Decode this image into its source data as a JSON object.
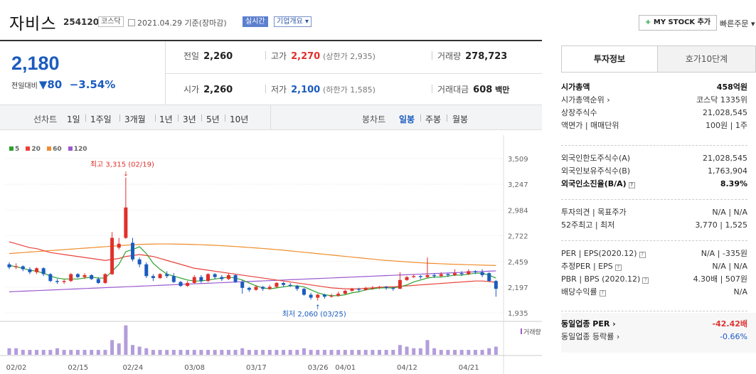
{
  "header": {
    "name": "자비스",
    "code": "254120",
    "market": "코스닥",
    "date": "2021.04.29 기준(장마감)",
    "realtime": "실시간",
    "overview": "기업개요 ▾",
    "mystock": "MY STOCK 추가",
    "mystock_plus": "+",
    "quick_order": "빠른주문 ▾"
  },
  "price": {
    "current": "2,180",
    "change_label": "전일대비",
    "change_arrow": "▼",
    "change_value": "80",
    "change_rate": "−3.54%"
  },
  "quotes": {
    "prev_label": "전일",
    "prev": "2,260",
    "high_label": "고가",
    "high": "2,270",
    "upper_limit": "(상한가 2,935)",
    "volume_label": "거래량",
    "volume": "278,723",
    "open_label": "시가",
    "open": "2,260",
    "low_label": "저가",
    "low": "2,100",
    "lower_limit": "(하한가 1,585)",
    "amount_label": "거래대금",
    "amount": "608",
    "amount_unit": "백만"
  },
  "periods": {
    "line_head": "선차트",
    "line_items": [
      "1일",
      "1주일",
      "3개월",
      "1년",
      "3년",
      "5년",
      "10년"
    ],
    "candle_head": "봉차트",
    "candle_items": [
      "일봉",
      "주봉",
      "월봉"
    ],
    "candle_active": "일봉"
  },
  "chart_data": {
    "type": "candlestick",
    "legend": [
      {
        "name": "5",
        "color": "#2ca02c"
      },
      {
        "name": "20",
        "color": "#e8413a"
      },
      {
        "name": "60",
        "color": "#f08c2c"
      },
      {
        "name": "120",
        "color": "#9b59d0"
      }
    ],
    "y_ticks": [
      "3,509",
      "3,247",
      "2,984",
      "2,722",
      "2,459",
      "2,197",
      "1,935"
    ],
    "ylim": [
      1935,
      3509
    ],
    "x_ticks": [
      "02/02",
      "02/15",
      "02/24",
      "03/08",
      "03/17",
      "03/26",
      "04/01",
      "04/12",
      "04/21"
    ],
    "high_note": "최고 3,315 (02/19)",
    "low_note": "최저 2,060 (03/25)",
    "volume_label": "거래량",
    "candles": [
      {
        "o": 2430,
        "c": 2400,
        "h": 2450,
        "l": 2380
      },
      {
        "o": 2400,
        "c": 2410,
        "h": 2440,
        "l": 2380
      },
      {
        "o": 2410,
        "c": 2380,
        "h": 2420,
        "l": 2360
      },
      {
        "o": 2380,
        "c": 2350,
        "h": 2400,
        "l": 2330
      },
      {
        "o": 2350,
        "c": 2390,
        "h": 2400,
        "l": 2330
      },
      {
        "o": 2390,
        "c": 2330,
        "h": 2400,
        "l": 2310
      },
      {
        "o": 2330,
        "c": 2260,
        "h": 2340,
        "l": 2250
      },
      {
        "o": 2260,
        "c": 2250,
        "h": 2280,
        "l": 2230
      },
      {
        "o": 2250,
        "c": 2260,
        "h": 2280,
        "l": 2230
      },
      {
        "o": 2260,
        "c": 2330,
        "h": 2340,
        "l": 2250
      },
      {
        "o": 2330,
        "c": 2300,
        "h": 2340,
        "l": 2290
      },
      {
        "o": 2300,
        "c": 2320,
        "h": 2340,
        "l": 2280
      },
      {
        "o": 2320,
        "c": 2280,
        "h": 2330,
        "l": 2270
      },
      {
        "o": 2280,
        "c": 2240,
        "h": 2300,
        "l": 2230
      },
      {
        "o": 2240,
        "c": 2330,
        "h": 2340,
        "l": 2230
      },
      {
        "o": 2330,
        "c": 2700,
        "h": 2760,
        "l": 2320
      },
      {
        "o": 2600,
        "c": 2640,
        "h": 2700,
        "l": 2580
      },
      {
        "o": 2700,
        "c": 3010,
        "h": 3315,
        "l": 2690
      },
      {
        "o": 2650,
        "c": 2480,
        "h": 2700,
        "l": 2460
      },
      {
        "o": 2480,
        "c": 2430,
        "h": 2500,
        "l": 2400
      },
      {
        "o": 2430,
        "c": 2310,
        "h": 2450,
        "l": 2290
      },
      {
        "o": 2310,
        "c": 2290,
        "h": 2330,
        "l": 2260
      },
      {
        "o": 2290,
        "c": 2330,
        "h": 2340,
        "l": 2280
      },
      {
        "o": 2330,
        "c": 2310,
        "h": 2360,
        "l": 2290
      },
      {
        "o": 2310,
        "c": 2250,
        "h": 2340,
        "l": 2240
      },
      {
        "o": 2250,
        "c": 2210,
        "h": 2260,
        "l": 2200
      },
      {
        "o": 2210,
        "c": 2240,
        "h": 2260,
        "l": 2200
      },
      {
        "o": 2240,
        "c": 2300,
        "h": 2320,
        "l": 2230
      },
      {
        "o": 2300,
        "c": 2260,
        "h": 2320,
        "l": 2240
      },
      {
        "o": 2260,
        "c": 2330,
        "h": 2340,
        "l": 2250
      },
      {
        "o": 2330,
        "c": 2300,
        "h": 2340,
        "l": 2280
      },
      {
        "o": 2300,
        "c": 2280,
        "h": 2320,
        "l": 2260
      },
      {
        "o": 2280,
        "c": 2320,
        "h": 2340,
        "l": 2270
      },
      {
        "o": 2320,
        "c": 2250,
        "h": 2330,
        "l": 2240
      },
      {
        "o": 2250,
        "c": 2190,
        "h": 2270,
        "l": 2130
      },
      {
        "o": 2190,
        "c": 2170,
        "h": 2200,
        "l": 2150
      },
      {
        "o": 2170,
        "c": 2200,
        "h": 2220,
        "l": 2160
      },
      {
        "o": 2200,
        "c": 2180,
        "h": 2210,
        "l": 2160
      },
      {
        "o": 2180,
        "c": 2200,
        "h": 2220,
        "l": 2170
      },
      {
        "o": 2200,
        "c": 2240,
        "h": 2250,
        "l": 2190
      },
      {
        "o": 2240,
        "c": 2220,
        "h": 2250,
        "l": 2200
      },
      {
        "o": 2220,
        "c": 2210,
        "h": 2240,
        "l": 2200
      },
      {
        "o": 2210,
        "c": 2180,
        "h": 2220,
        "l": 2160
      },
      {
        "o": 2180,
        "c": 2120,
        "h": 2190,
        "l": 2110
      },
      {
        "o": 2120,
        "c": 2090,
        "h": 2140,
        "l": 2070
      },
      {
        "o": 2090,
        "c": 2120,
        "h": 2130,
        "l": 2060
      },
      {
        "o": 2120,
        "c": 2100,
        "h": 2130,
        "l": 2080
      },
      {
        "o": 2100,
        "c": 2110,
        "h": 2130,
        "l": 2090
      },
      {
        "o": 2110,
        "c": 2130,
        "h": 2150,
        "l": 2100
      },
      {
        "o": 2130,
        "c": 2160,
        "h": 2170,
        "l": 2120
      },
      {
        "o": 2160,
        "c": 2180,
        "h": 2190,
        "l": 2150
      },
      {
        "o": 2180,
        "c": 2170,
        "h": 2190,
        "l": 2150
      },
      {
        "o": 2170,
        "c": 2190,
        "h": 2200,
        "l": 2160
      },
      {
        "o": 2190,
        "c": 2190,
        "h": 2210,
        "l": 2170
      },
      {
        "o": 2190,
        "c": 2200,
        "h": 2210,
        "l": 2180
      },
      {
        "o": 2200,
        "c": 2190,
        "h": 2210,
        "l": 2170
      },
      {
        "o": 2190,
        "c": 2180,
        "h": 2200,
        "l": 2160
      },
      {
        "o": 2180,
        "c": 2270,
        "h": 2350,
        "l": 2180
      },
      {
        "o": 2270,
        "c": 2300,
        "h": 2310,
        "l": 2260
      },
      {
        "o": 2300,
        "c": 2310,
        "h": 2330,
        "l": 2290
      },
      {
        "o": 2310,
        "c": 2300,
        "h": 2320,
        "l": 2280
      },
      {
        "o": 2300,
        "c": 2320,
        "h": 2500,
        "l": 2290
      },
      {
        "o": 2320,
        "c": 2310,
        "h": 2340,
        "l": 2290
      },
      {
        "o": 2310,
        "c": 2330,
        "h": 2350,
        "l": 2300
      },
      {
        "o": 2330,
        "c": 2320,
        "h": 2340,
        "l": 2300
      },
      {
        "o": 2320,
        "c": 2340,
        "h": 2380,
        "l": 2310
      },
      {
        "o": 2340,
        "c": 2330,
        "h": 2360,
        "l": 2310
      },
      {
        "o": 2330,
        "c": 2360,
        "h": 2380,
        "l": 2320
      },
      {
        "o": 2360,
        "c": 2350,
        "h": 2370,
        "l": 2330
      },
      {
        "o": 2350,
        "c": 2320,
        "h": 2380,
        "l": 2300
      },
      {
        "o": 2340,
        "c": 2260,
        "h": 2350,
        "l": 2250
      },
      {
        "o": 2260,
        "c": 2180,
        "h": 2270,
        "l": 2100
      }
    ],
    "ma5": [
      2420,
      2405,
      2390,
      2370,
      2360,
      2340,
      2310,
      2290,
      2280,
      2280,
      2280,
      2290,
      2300,
      2290,
      2290,
      2360,
      2430,
      2560,
      2580,
      2610,
      2540,
      2440,
      2380,
      2330,
      2310,
      2290,
      2270,
      2260,
      2260,
      2270,
      2280,
      2290,
      2300,
      2290,
      2270,
      2240,
      2210,
      2190,
      2180,
      2190,
      2200,
      2210,
      2210,
      2200,
      2170,
      2140,
      2120,
      2110,
      2110,
      2120,
      2140,
      2150,
      2170,
      2180,
      2190,
      2190,
      2190,
      2200,
      2220,
      2250,
      2270,
      2290,
      2300,
      2300,
      2310,
      2320,
      2320,
      2330,
      2340,
      2340,
      2320,
      2290
    ],
    "ma20": [
      2660,
      2640,
      2620,
      2600,
      2590,
      2570,
      2550,
      2540,
      2530,
      2520,
      2510,
      2500,
      2490,
      2480,
      2470,
      2480,
      2490,
      2510,
      2520,
      2530,
      2520,
      2510,
      2490,
      2470,
      2450,
      2430,
      2410,
      2390,
      2380,
      2370,
      2360,
      2350,
      2340,
      2330,
      2320,
      2310,
      2300,
      2290,
      2280,
      2270,
      2260,
      2250,
      2240,
      2230,
      2220,
      2210,
      2200,
      2190,
      2185,
      2180,
      2180,
      2180,
      2185,
      2190,
      2195,
      2200,
      2200,
      2205,
      2210,
      2215,
      2220,
      2225,
      2230,
      2235,
      2240,
      2245,
      2250,
      2255,
      2260,
      2260,
      2255,
      2245
    ],
    "ma60": [
      2540,
      2545,
      2550,
      2555,
      2560,
      2565,
      2570,
      2575,
      2580,
      2585,
      2590,
      2595,
      2600,
      2605,
      2610,
      2615,
      2620,
      2625,
      2630,
      2633,
      2635,
      2637,
      2638,
      2638,
      2637,
      2636,
      2634,
      2632,
      2630,
      2627,
      2624,
      2620,
      2616,
      2612,
      2607,
      2602,
      2597,
      2592,
      2586,
      2580,
      2574,
      2567,
      2560,
      2553,
      2546,
      2539,
      2532,
      2525,
      2518,
      2511,
      2504,
      2497,
      2490,
      2483,
      2476,
      2470,
      2465,
      2460,
      2455,
      2450,
      2446,
      2442,
      2439,
      2436,
      2433,
      2430,
      2428,
      2426,
      2424,
      2422,
      2420,
      2418
    ],
    "ma120": [
      2150,
      2153,
      2156,
      2159,
      2162,
      2165,
      2168,
      2171,
      2174,
      2177,
      2180,
      2183,
      2186,
      2189,
      2192,
      2195,
      2198,
      2201,
      2204,
      2207,
      2210,
      2213,
      2216,
      2219,
      2222,
      2225,
      2228,
      2231,
      2234,
      2237,
      2240,
      2243,
      2246,
      2249,
      2252,
      2255,
      2258,
      2261,
      2264,
      2267,
      2270,
      2273,
      2276,
      2279,
      2282,
      2285,
      2288,
      2291,
      2294,
      2297,
      2300,
      2303,
      2306,
      2309,
      2312,
      2315,
      2318,
      2321,
      2324,
      2327,
      2330,
      2333,
      2336,
      2339,
      2342,
      2345,
      2348,
      2351,
      2354,
      2357,
      2360,
      2363
    ],
    "volumes": [
      4,
      4,
      3,
      3,
      3,
      3,
      3,
      4,
      3,
      3,
      3,
      3,
      3,
      3,
      3,
      9,
      7,
      18,
      6,
      5,
      4,
      3,
      3,
      3,
      3,
      3,
      3,
      3,
      3,
      3,
      3,
      3,
      3,
      3,
      4,
      3,
      3,
      3,
      3,
      3,
      3,
      3,
      3,
      4,
      3,
      3,
      3,
      3,
      3,
      3,
      3,
      3,
      3,
      3,
      3,
      3,
      3,
      6,
      5,
      4,
      4,
      9,
      4,
      3,
      3,
      3,
      3,
      3,
      3,
      3,
      4,
      5
    ]
  },
  "panel": {
    "tab_on": "투자정보",
    "tab_off": "호가10단계",
    "rows1": [
      {
        "l": "시가총액",
        "r": "458억원",
        "bold": true
      },
      {
        "l": "시가총액순위 ›",
        "r": "코스닥 1335위"
      },
      {
        "l": "상장주식수",
        "r": "21,028,545"
      },
      {
        "l": "액면가 | 매매단위",
        "r": "100원 | 1주"
      }
    ],
    "rows2": [
      {
        "l": "외국인한도주식수(A)",
        "r": "21,028,545"
      },
      {
        "l": "외국인보유주식수(B)",
        "r": "1,763,904"
      },
      {
        "l": "외국인소진율(B/A)",
        "r": "8.39%",
        "bold": true
      }
    ],
    "rows3": [
      {
        "l": "투자의견 | 목표주가",
        "r": "N/A | N/A"
      },
      {
        "l": "52주최고 | 최저",
        "r": "3,770 | 1,525"
      }
    ],
    "rows4": [
      {
        "l": "PER | EPS(2020.12)",
        "r": "N/A | -335원"
      },
      {
        "l": "추정PER | EPS",
        "r": "N/A | N/A"
      },
      {
        "l": "PBR | BPS (2020.12)",
        "r": "4.30배 | 507원"
      },
      {
        "l": "배당수익률",
        "r": "N/A"
      }
    ],
    "rows5": [
      {
        "l": "동일업종 PER ›",
        "r": "-42.42배",
        "bold": true
      },
      {
        "l": "동일업종 등락률 ›",
        "r": "-0.66%"
      }
    ]
  }
}
